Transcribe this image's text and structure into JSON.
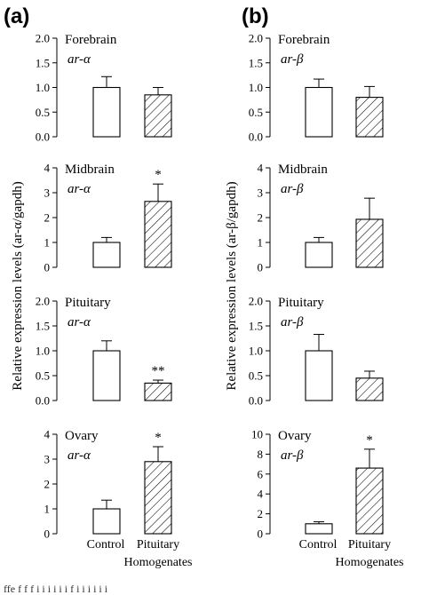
{
  "panel_labels": [
    "(a)",
    "(b)"
  ],
  "ylabels": [
    "Relative expression levels (ar-α/gapdh)",
    "Relative expression levels (ar-β/gapdh)"
  ],
  "categories": [
    "Control",
    "Pituitary",
    "Homogenates"
  ],
  "caption_fragment": "ffe     f   f   f  i i  i  i     i     i   f   i     i   i   i   i i",
  "chart_data": [
    {
      "type": "bar",
      "column": 0,
      "row": 0,
      "tissue": "Forebrain",
      "gene": "ar-α",
      "ylim": [
        0,
        2.0
      ],
      "yticks": [
        0.0,
        0.5,
        1.0,
        1.5,
        2.0
      ],
      "categories": [
        "Control",
        "Pituitary Homogenates"
      ],
      "values": [
        1.0,
        0.85
      ],
      "errors": [
        0.22,
        0.15
      ],
      "hatched": [
        false,
        true
      ],
      "significance": [
        "",
        ""
      ]
    },
    {
      "type": "bar",
      "column": 0,
      "row": 1,
      "tissue": "Midbrain",
      "gene": "ar-α",
      "ylim": [
        0,
        4
      ],
      "yticks": [
        0,
        1,
        2,
        3,
        4
      ],
      "categories": [
        "Control",
        "Pituitary Homogenates"
      ],
      "values": [
        1.0,
        2.65
      ],
      "errors": [
        0.2,
        0.7
      ],
      "hatched": [
        false,
        true
      ],
      "significance": [
        "",
        "*"
      ]
    },
    {
      "type": "bar",
      "column": 0,
      "row": 2,
      "tissue": "Pituitary",
      "gene": "ar-α",
      "ylim": [
        0,
        2.0
      ],
      "yticks": [
        0.0,
        0.5,
        1.0,
        1.5,
        2.0
      ],
      "categories": [
        "Control",
        "Pituitary Homogenates"
      ],
      "values": [
        1.0,
        0.35
      ],
      "errors": [
        0.2,
        0.06
      ],
      "hatched": [
        false,
        true
      ],
      "significance": [
        "",
        "**"
      ]
    },
    {
      "type": "bar",
      "column": 0,
      "row": 3,
      "tissue": "Ovary",
      "gene": "ar-α",
      "ylim": [
        0,
        4
      ],
      "yticks": [
        0,
        1,
        2,
        3,
        4
      ],
      "categories": [
        "Control",
        "Pituitary Homogenates"
      ],
      "values": [
        1.0,
        2.9
      ],
      "errors": [
        0.35,
        0.6
      ],
      "hatched": [
        false,
        true
      ],
      "significance": [
        "",
        "*"
      ]
    },
    {
      "type": "bar",
      "column": 1,
      "row": 0,
      "tissue": "Forebrain",
      "gene": "ar-β",
      "ylim": [
        0,
        2.0
      ],
      "yticks": [
        0.0,
        0.5,
        1.0,
        1.5,
        2.0
      ],
      "categories": [
        "Control",
        "Pituitary Homogenates"
      ],
      "values": [
        1.0,
        0.8
      ],
      "errors": [
        0.17,
        0.22
      ],
      "hatched": [
        false,
        true
      ],
      "significance": [
        "",
        ""
      ]
    },
    {
      "type": "bar",
      "column": 1,
      "row": 1,
      "tissue": "Midbrain",
      "gene": "ar-β",
      "ylim": [
        0,
        4
      ],
      "yticks": [
        0,
        1,
        2,
        3,
        4
      ],
      "categories": [
        "Control",
        "Pituitary Homogenates"
      ],
      "values": [
        1.0,
        1.93
      ],
      "errors": [
        0.2,
        0.85
      ],
      "hatched": [
        false,
        true
      ],
      "significance": [
        "",
        ""
      ]
    },
    {
      "type": "bar",
      "column": 1,
      "row": 2,
      "tissue": "Pituitary",
      "gene": "ar-β",
      "ylim": [
        0,
        2.0
      ],
      "yticks": [
        0.0,
        0.5,
        1.0,
        1.5,
        2.0
      ],
      "categories": [
        "Control",
        "Pituitary Homogenates"
      ],
      "values": [
        1.0,
        0.45
      ],
      "errors": [
        0.33,
        0.14
      ],
      "hatched": [
        false,
        true
      ],
      "significance": [
        "",
        ""
      ]
    },
    {
      "type": "bar",
      "column": 1,
      "row": 3,
      "tissue": "Ovary",
      "gene": "ar-β",
      "ylim": [
        0,
        10
      ],
      "yticks": [
        0,
        2,
        4,
        6,
        8,
        10
      ],
      "categories": [
        "Control",
        "Pituitary Homogenates"
      ],
      "values": [
        1.0,
        6.6
      ],
      "errors": [
        0.2,
        1.9
      ],
      "hatched": [
        false,
        true
      ],
      "significance": [
        "",
        "*"
      ]
    }
  ]
}
